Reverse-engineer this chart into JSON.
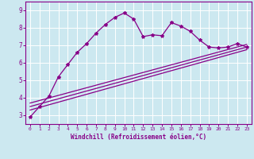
{
  "xlabel": "Windchill (Refroidissement éolien,°C)",
  "bg_color": "#cce8f0",
  "line_color": "#880088",
  "grid_color": "#ffffff",
  "xlim": [
    -0.5,
    23.5
  ],
  "ylim": [
    2.5,
    9.5
  ],
  "xticks": [
    0,
    1,
    2,
    3,
    4,
    5,
    6,
    7,
    8,
    9,
    10,
    11,
    12,
    13,
    14,
    15,
    16,
    17,
    18,
    19,
    20,
    21,
    22,
    23
  ],
  "yticks": [
    3,
    4,
    5,
    6,
    7,
    8,
    9
  ],
  "series1_x": [
    0,
    1,
    2,
    3,
    4,
    5,
    6,
    7,
    8,
    9,
    10,
    11,
    12,
    13,
    14,
    15,
    16,
    17,
    18,
    19,
    20,
    21,
    22,
    23
  ],
  "series1_y": [
    2.9,
    3.5,
    4.1,
    5.2,
    5.9,
    6.6,
    7.1,
    7.7,
    8.2,
    8.6,
    8.85,
    8.5,
    7.5,
    7.6,
    7.55,
    8.3,
    8.1,
    7.8,
    7.3,
    6.9,
    6.85,
    6.9,
    7.1,
    6.9
  ],
  "line2_x": [
    0,
    23
  ],
  "line2_y": [
    3.5,
    6.9
  ],
  "line3_x": [
    0,
    23
  ],
  "line3_y": [
    3.7,
    7.05
  ],
  "line4_x": [
    0,
    23
  ],
  "line4_y": [
    3.3,
    6.75
  ]
}
